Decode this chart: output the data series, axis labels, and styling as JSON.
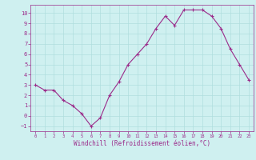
{
  "x": [
    0,
    1,
    2,
    3,
    4,
    5,
    6,
    7,
    8,
    9,
    10,
    11,
    12,
    13,
    14,
    15,
    16,
    17,
    18,
    19,
    20,
    21,
    22,
    23
  ],
  "y": [
    3,
    2.5,
    2.5,
    1.5,
    1,
    0.2,
    -1,
    -0.2,
    2,
    3.3,
    5,
    6,
    7,
    8.5,
    9.7,
    8.8,
    10.3,
    10.3,
    10.3,
    9.7,
    8.5,
    6.5,
    5,
    3.5
  ],
  "line_color": "#9b2b8a",
  "marker": "+",
  "bg_color": "#cff0f0",
  "grid_color": "#b0dede",
  "xlabel": "Windchill (Refroidissement éolien,°C)",
  "xlabel_color": "#9b2b8a",
  "tick_color": "#9b2b8a",
  "ylim": [
    -1.5,
    10.8
  ],
  "xlim": [
    -0.5,
    23.5
  ],
  "yticks": [
    -1,
    0,
    1,
    2,
    3,
    4,
    5,
    6,
    7,
    8,
    9,
    10
  ],
  "xticks": [
    0,
    1,
    2,
    3,
    4,
    5,
    6,
    7,
    8,
    9,
    10,
    11,
    12,
    13,
    14,
    15,
    16,
    17,
    18,
    19,
    20,
    21,
    22,
    23
  ]
}
